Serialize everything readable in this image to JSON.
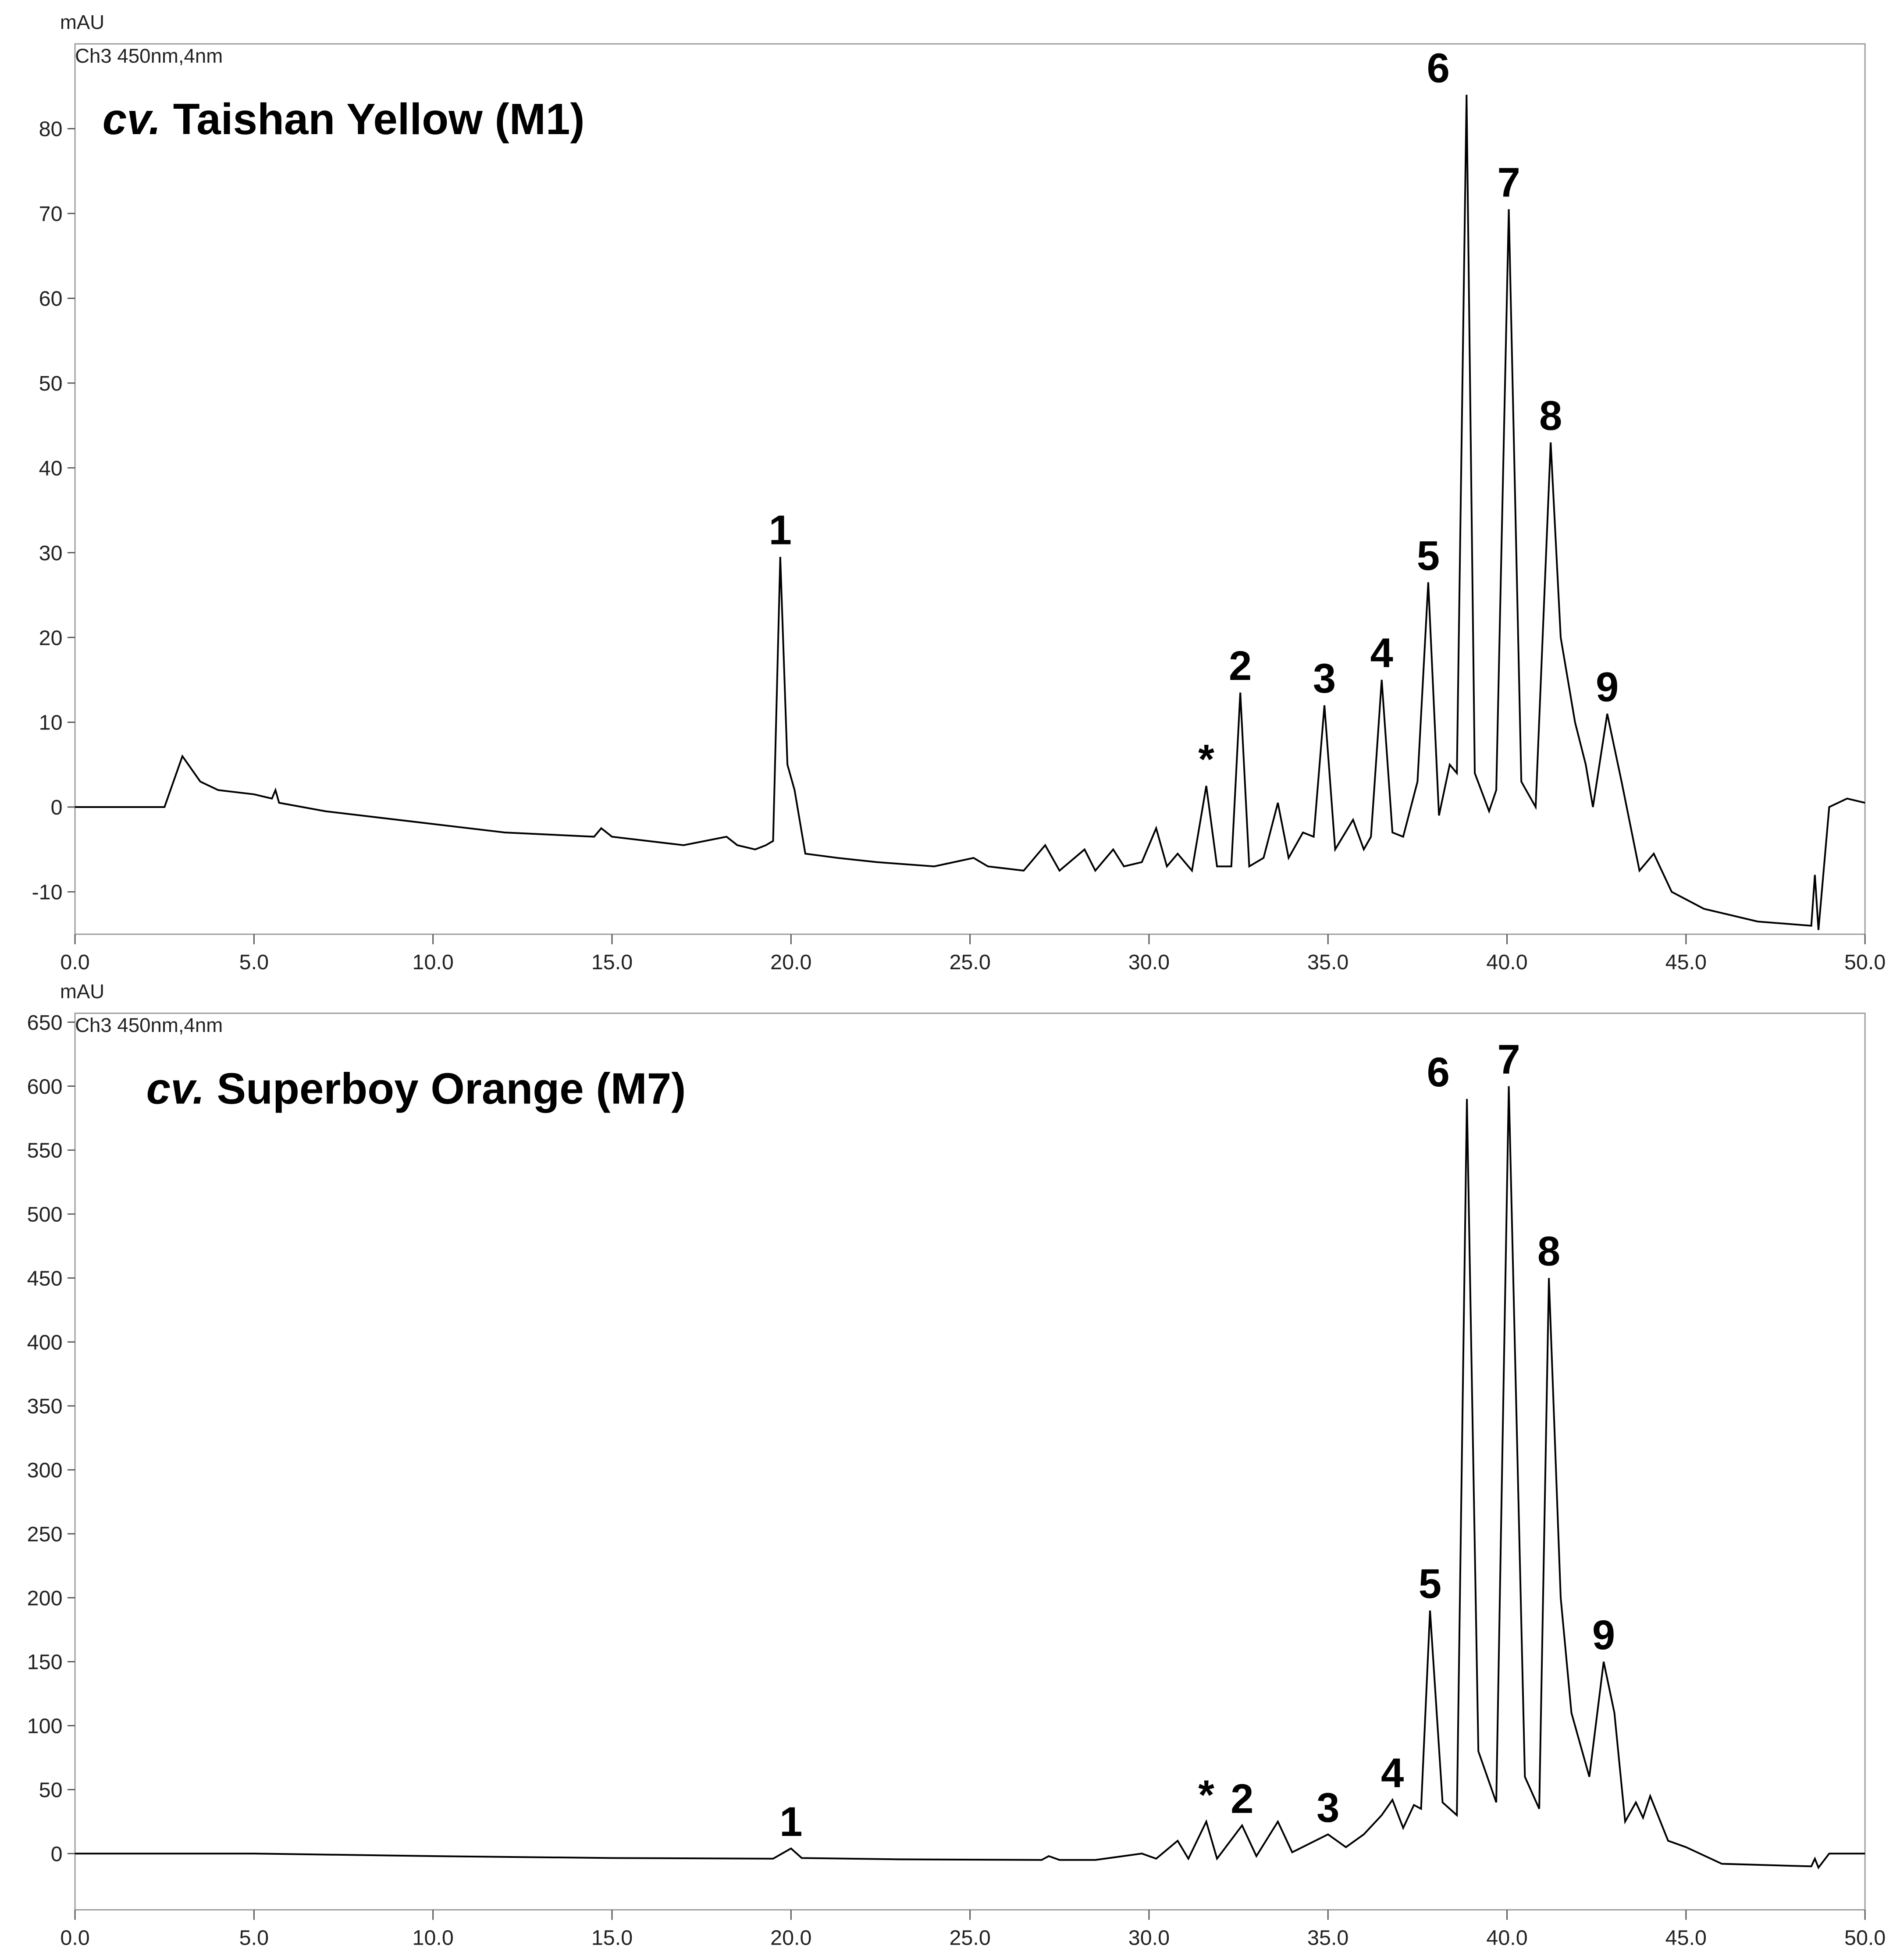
{
  "chart_data": [
    {
      "type": "line",
      "title": "cv. Taishan Yellow (M1)",
      "y_label": "mAU",
      "subtitle": "Ch3 450nm,4nm",
      "color": "#000000",
      "x": [
        0,
        2.5,
        3.0,
        3.5,
        4,
        5,
        5.5,
        5.6,
        5.7,
        7,
        10,
        12,
        14.5,
        14.7,
        15,
        17,
        18.2,
        18.5,
        19,
        19.3,
        19.5,
        19.7,
        19.9,
        20.1,
        20.4,
        21.3,
        22.4,
        24,
        25.1,
        25.5,
        26.5,
        27.1,
        27.5,
        28.2,
        28.5,
        29,
        29.3,
        29.8,
        30.2,
        30.5,
        30.8,
        31.2,
        31.6,
        31.9,
        32.3,
        32.55,
        32.8,
        33.2,
        33.6,
        33.9,
        34.3,
        34.6,
        34.9,
        35.2,
        35.7,
        36.0,
        36.2,
        36.5,
        36.8,
        37.1,
        37.5,
        37.8,
        38.1,
        38.4,
        38.6,
        38.87,
        39.1,
        39.5,
        39.7,
        40.05,
        40.4,
        40.8,
        41.22,
        41.5,
        41.9,
        42.2,
        42.4,
        42.8,
        43.2,
        43.7,
        44.1,
        44.6,
        45.5,
        47,
        48.5,
        48.6,
        48.7,
        49,
        49.5,
        50
      ],
      "values": [
        0,
        0,
        6,
        3,
        2,
        1.5,
        1,
        2,
        0.5,
        -0.5,
        -2,
        -3,
        -3.5,
        -2.5,
        -3.5,
        -4.5,
        -3.5,
        -4.5,
        -5,
        -4.5,
        -4,
        29.5,
        5,
        2,
        -5.5,
        -6,
        -6.5,
        -7,
        -6,
        -7,
        -7.5,
        -4.5,
        -7.5,
        -5,
        -7.5,
        -5,
        -7,
        -6.5,
        -2.5,
        -7,
        -5.5,
        -7.5,
        2.5,
        -7,
        -7,
        13.5,
        -7,
        -6,
        0.5,
        -6,
        -3,
        -3.5,
        12,
        -5,
        -1.5,
        -5,
        -3.5,
        15,
        -3,
        -3.5,
        3,
        26.5,
        -1,
        5,
        4,
        84,
        4,
        -0.5,
        2,
        70.5,
        3,
        0,
        43,
        20,
        10,
        5,
        0,
        11,
        3,
        -7.5,
        -5.5,
        -10,
        -12,
        -13.5,
        -14,
        -8,
        -14.5,
        0,
        1,
        0.5
      ],
      "xlim": [
        0,
        50
      ],
      "ylim": [
        -15,
        90
      ],
      "xticks": [
        {
          "value": 0,
          "label": "0.0"
        },
        {
          "value": 5,
          "label": "5.0"
        },
        {
          "value": 10,
          "label": "10.0"
        },
        {
          "value": 15,
          "label": "15.0"
        },
        {
          "value": 20,
          "label": "20.0"
        },
        {
          "value": 25,
          "label": "25.0"
        },
        {
          "value": 30,
          "label": "30.0"
        },
        {
          "value": 35,
          "label": "35.0"
        },
        {
          "value": 40,
          "label": "40.0"
        },
        {
          "value": 45,
          "label": "45.0"
        },
        {
          "value": 50,
          "label": "50.0"
        }
      ],
      "yticks": [
        -10,
        0,
        10,
        20,
        30,
        40,
        50,
        60,
        70,
        80
      ],
      "annotations": [
        {
          "text": "1",
          "x": 19.7
        },
        {
          "text": "*",
          "x": 31.6
        },
        {
          "text": "2",
          "x": 32.55
        },
        {
          "text": "3",
          "x": 34.9
        },
        {
          "text": "4",
          "x": 36.5
        },
        {
          "text": "5",
          "x": 37.8
        },
        {
          "text": "6",
          "x": 38.5
        },
        {
          "text": "7",
          "x": 40.05
        },
        {
          "text": "8",
          "x": 41.22
        },
        {
          "text": "9",
          "x": 42.8
        }
      ]
    },
    {
      "type": "line",
      "title": "cv. Superboy Orange (M7)",
      "y_label": "mAU",
      "subtitle": "Ch3 450nm,4nm",
      "color": "#000000",
      "x": [
        0,
        5,
        10,
        15,
        19.5,
        20.0,
        20.3,
        23,
        27,
        27.2,
        27.5,
        28.5,
        29.8,
        30.2,
        30.8,
        31.1,
        31.6,
        31.9,
        32.6,
        33,
        33.6,
        34,
        35,
        35.5,
        36,
        36.5,
        36.8,
        37.1,
        37.4,
        37.6,
        37.85,
        38.2,
        38.6,
        38.88,
        39.2,
        39.7,
        40.05,
        40.5,
        40.9,
        41.17,
        41.5,
        41.8,
        42.3,
        42.7,
        43,
        43.3,
        43.6,
        43.8,
        44.0,
        44.5,
        45,
        46,
        48.5,
        48.6,
        48.7,
        49,
        50
      ],
      "values": [
        0,
        0,
        -2,
        -3.5,
        -4,
        4,
        -3.5,
        -4.5,
        -5,
        -2,
        -5,
        -5,
        0,
        -4,
        10,
        -4,
        25,
        -4,
        22,
        -2,
        25,
        1,
        15,
        5,
        15,
        30,
        42,
        20,
        38,
        35,
        190,
        40,
        30,
        590,
        80,
        40,
        600,
        60,
        35,
        450,
        200,
        110,
        60,
        150,
        110,
        25,
        40,
        28,
        45,
        10,
        5,
        -8,
        -10,
        -4,
        -11,
        0,
        0
      ],
      "xlim": [
        0,
        50
      ],
      "ylim": [
        -44,
        657
      ],
      "xticks": [
        {
          "value": 0,
          "label": "0.0"
        },
        {
          "value": 5,
          "label": "5.0"
        },
        {
          "value": 10,
          "label": "10.0"
        },
        {
          "value": 15,
          "label": "15.0"
        },
        {
          "value": 20,
          "label": "20.0"
        },
        {
          "value": 25,
          "label": "25.0"
        },
        {
          "value": 30,
          "label": "30.0"
        },
        {
          "value": 35,
          "label": "35.0"
        },
        {
          "value": 40,
          "label": "40.0"
        },
        {
          "value": 45,
          "label": "45.0"
        },
        {
          "value": 50,
          "label": "50.0"
        }
      ],
      "yticks": [
        0,
        50,
        100,
        150,
        200,
        250,
        300,
        350,
        400,
        450,
        500,
        550,
        600,
        650
      ],
      "annotations": [
        {
          "text": "1",
          "x": 20.0
        },
        {
          "text": "*",
          "x": 31.6
        },
        {
          "text": "2",
          "x": 32.6
        },
        {
          "text": "3",
          "x": 35.0
        },
        {
          "text": "4",
          "x": 36.8
        },
        {
          "text": "5",
          "x": 37.85
        },
        {
          "text": "6",
          "x": 38.5
        },
        {
          "text": "7",
          "x": 40.05
        },
        {
          "text": "8",
          "x": 41.17
        },
        {
          "text": "9",
          "x": 42.7
        }
      ]
    }
  ]
}
